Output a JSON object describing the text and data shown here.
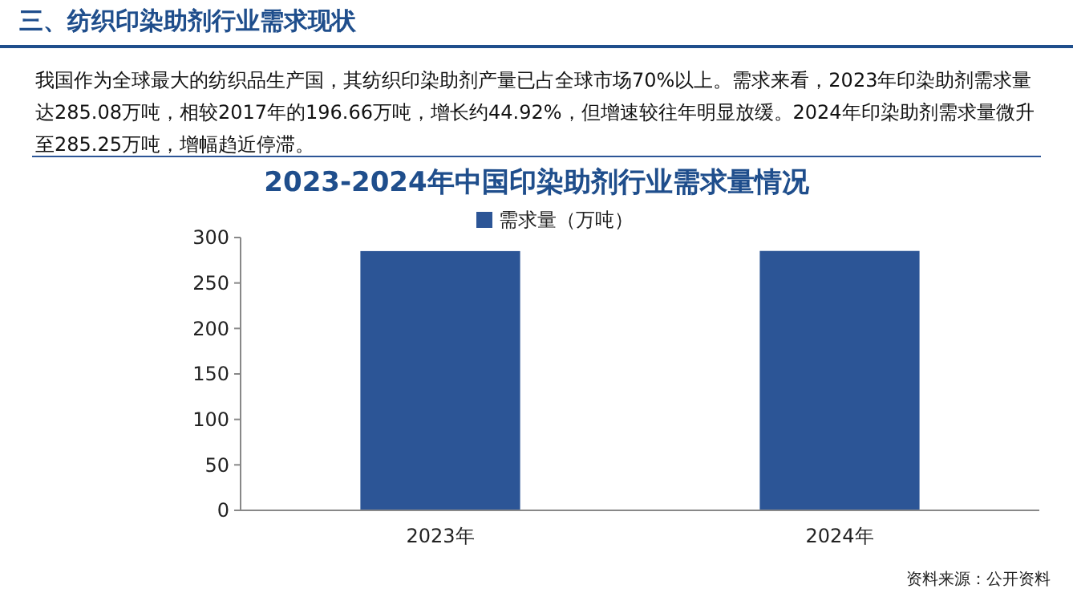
{
  "chart_data": {
    "type": "bar",
    "title": "2023-2024年中国印染助剂行业需求量情况",
    "subtitle": "我国作为全球最大的纺织品生产国，其纺织印染助剂产量已占全球市场70%以上。需求来看，2023年印染助剂需求量达285.08万吨，相较2017年的196.66万吨，增长约44.92%，但增速较往年明显放缓。2024年印染助剂需求量微升至285.25万吨，增幅趋近停滞。",
    "annotations": [
      "三、纺织印染助剂行业需求现状",
      "资料来源：公开资料"
    ],
    "categories": [
      "2023年",
      "2024年"
    ],
    "series": [
      {
        "name": "需求量（万吨）",
        "color": "#2c5596",
        "values": [
          285.08,
          285.25
        ]
      }
    ],
    "ylim": [
      0,
      300
    ],
    "yticks": [
      0,
      50,
      100,
      150,
      200,
      250,
      300
    ],
    "grid": false,
    "legend": "top"
  }
}
